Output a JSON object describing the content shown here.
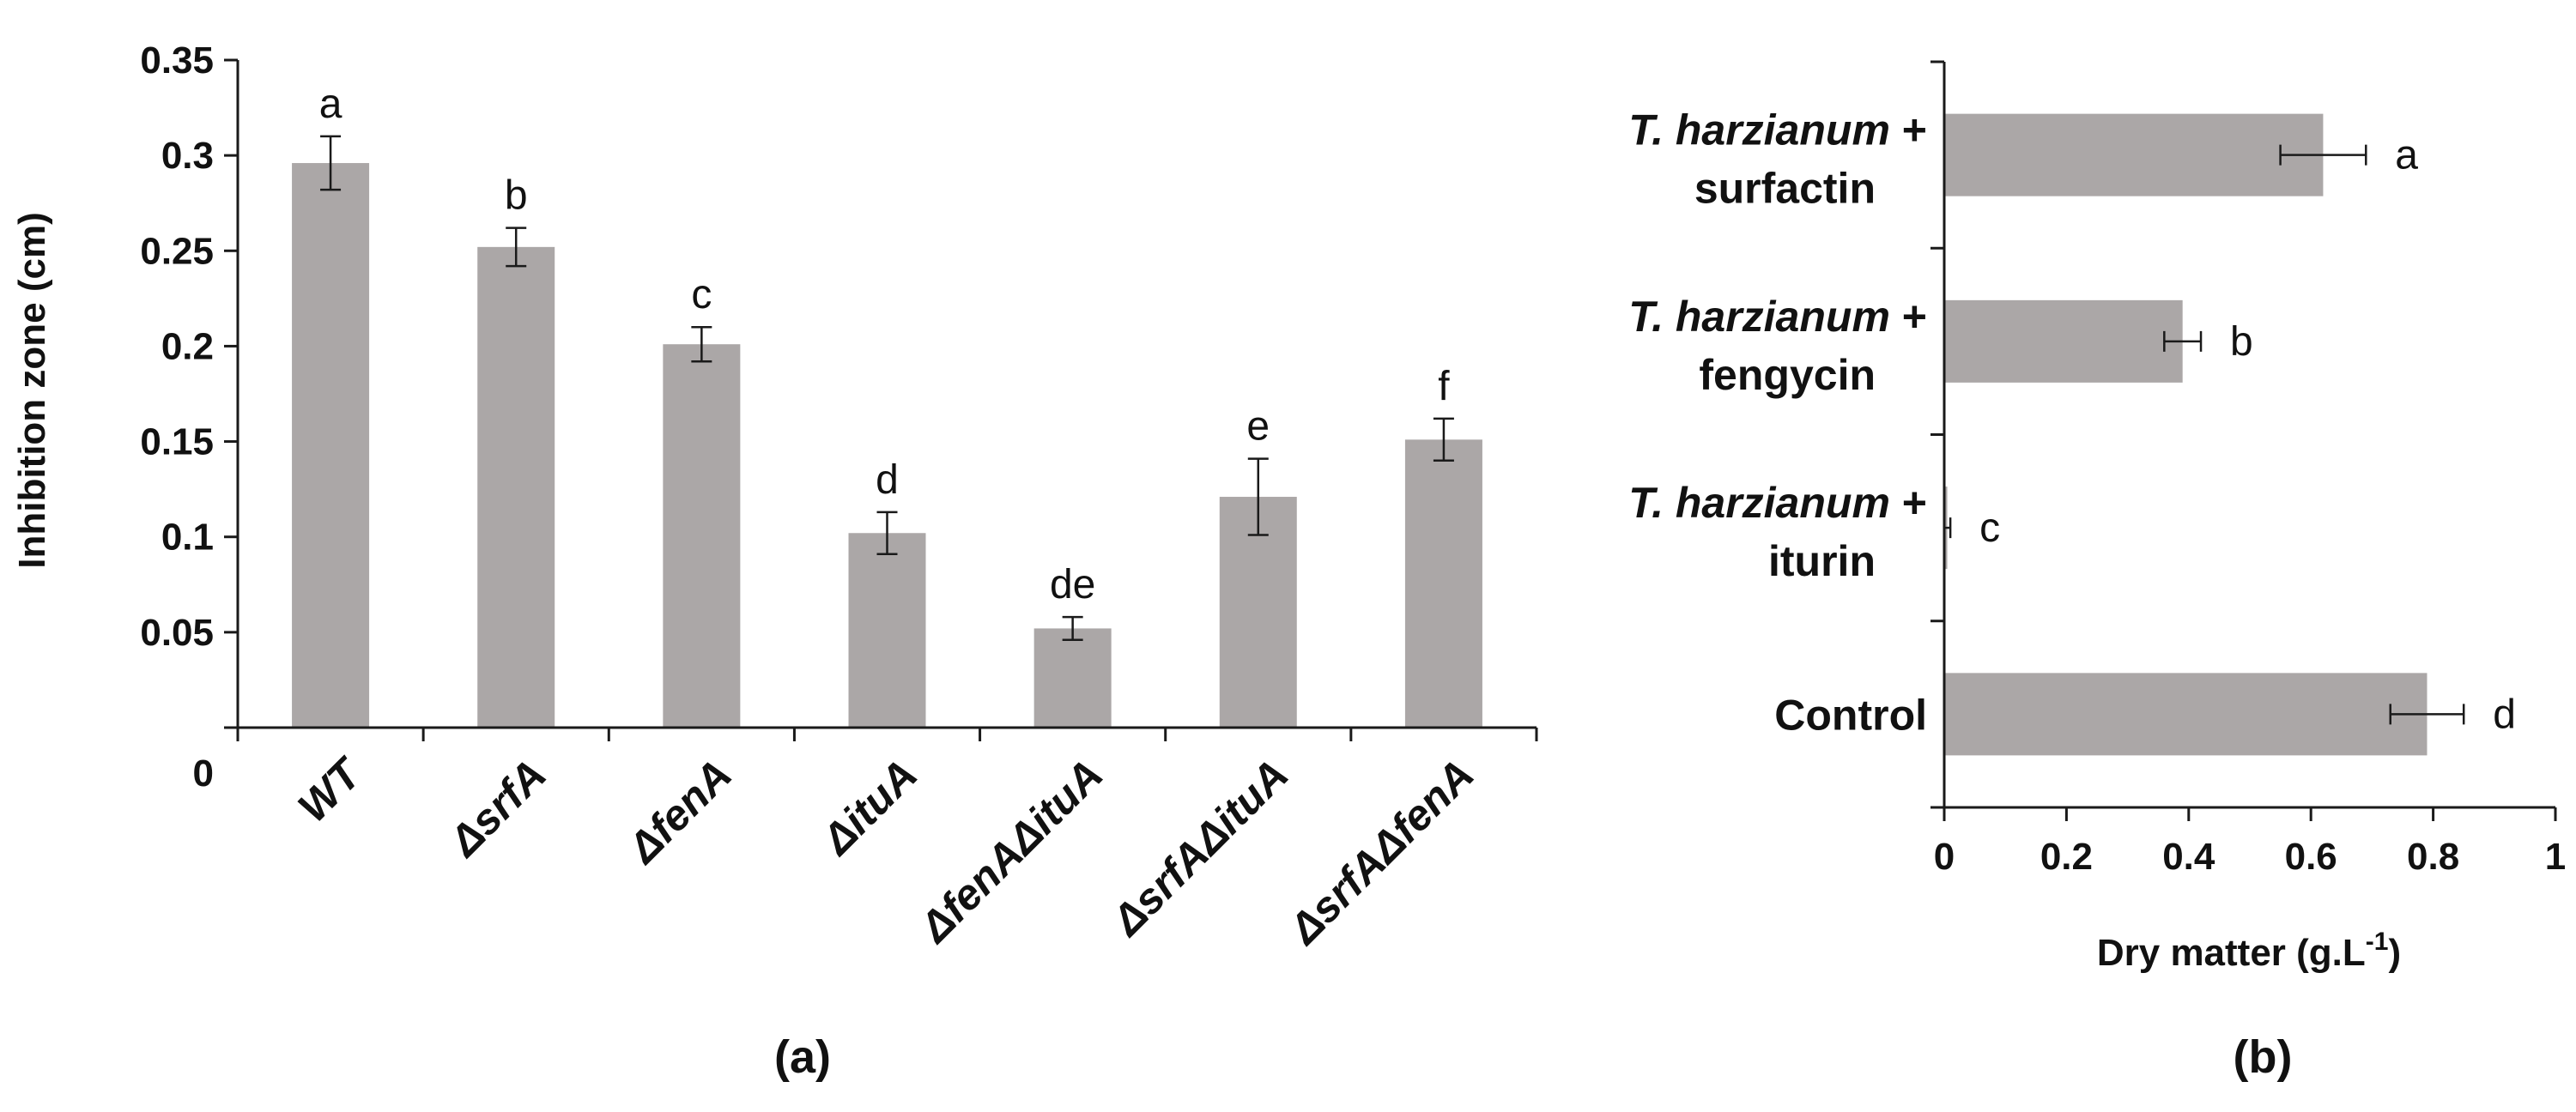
{
  "chart_data": [
    {
      "panel_label": "(a)",
      "type": "bar",
      "orientation": "vertical",
      "ylabel": "Inhibition zone (cm)",
      "xlabel": "",
      "ylim": [
        0,
        0.35
      ],
      "yticks": [
        {
          "value": 0,
          "label": "0"
        },
        {
          "value": 0.05,
          "label": "0.05"
        },
        {
          "value": 0.1,
          "label": "0.1"
        },
        {
          "value": 0.15,
          "label": "0.15"
        },
        {
          "value": 0.2,
          "label": "0.2"
        },
        {
          "value": 0.25,
          "label": "0.25"
        },
        {
          "value": 0.3,
          "label": "0.3"
        },
        {
          "value": 0.35,
          "label": "0.35"
        }
      ],
      "categories": [
        "WT",
        "ΔsrfA",
        "ΔfenA",
        "ΔituA",
        "ΔfenAΔituA",
        "ΔsrfAΔituA",
        "ΔsrfAΔfenA"
      ],
      "values": [
        0.296,
        0.252,
        0.201,
        0.102,
        0.052,
        0.121,
        0.151
      ],
      "errors": [
        0.014,
        0.01,
        0.009,
        0.011,
        0.006,
        0.02,
        0.011
      ],
      "letters": [
        "a",
        "b",
        "c",
        "d",
        "de",
        "e",
        "f"
      ],
      "bar_color": "#aba7a7"
    },
    {
      "panel_label": "(b)",
      "type": "bar",
      "orientation": "horizontal",
      "xlabel_main": "Dry matter (g.L",
      "xlabel_sup": "-1",
      "xlabel_end": ")",
      "xlim": [
        0,
        1
      ],
      "xticks": [
        {
          "value": 0,
          "label": "0"
        },
        {
          "value": 0.2,
          "label": "0.2"
        },
        {
          "value": 0.4,
          "label": "0.4"
        },
        {
          "value": 0.6,
          "label": "0.6"
        },
        {
          "value": 0.8,
          "label": "0.8"
        },
        {
          "value": 1,
          "label": "1"
        }
      ],
      "categories": [
        {
          "italic": "T. harzianum",
          "plus": " +",
          "second": "surfactin"
        },
        {
          "italic": "T. harzianum",
          "plus": " +",
          "second": "fengycin"
        },
        {
          "italic": "T. harzianum",
          "plus": " +",
          "second": "iturin"
        },
        {
          "italic": "",
          "plus": "",
          "second": "Control"
        }
      ],
      "values": [
        0.62,
        0.39,
        0.005,
        0.79
      ],
      "errors": [
        0.07,
        0.03,
        0.005,
        0.06
      ],
      "letters": [
        "a",
        "b",
        "c",
        "d"
      ],
      "bar_color": "#aba7a7"
    }
  ]
}
